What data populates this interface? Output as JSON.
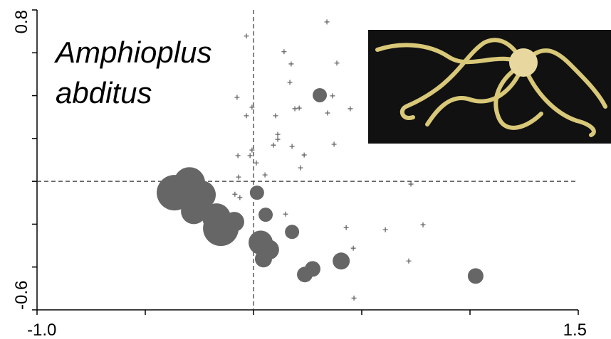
{
  "chart_data": {
    "type": "scatter",
    "annotation": [
      "Amphioplus",
      "abditus"
    ],
    "xlim": [
      -1.0,
      1.5
    ],
    "ylim": [
      -0.6,
      0.8
    ],
    "xticks": [
      {
        "value": -1.0,
        "label": "-1.0"
      },
      1.5
    ],
    "yticks": [
      -0.6,
      0.8
    ],
    "xminorticks": [
      -0.5,
      0,
      0.5,
      1.0
    ],
    "yminorticks": [
      -0.4,
      -0.2,
      0,
      0.2,
      0.4,
      0.6
    ],
    "reference_lines": {
      "x": 0,
      "y": 0
    },
    "series": [
      {
        "marker": "cross",
        "color": "#666666",
        "x": [
          0.339,
          -0.033,
          0.141,
          0.385,
          0.174,
          0.168,
          -0.076,
          0.365,
          0.191,
          0.211,
          0.342,
          0.447,
          -0.033,
          -0.007,
          0.102,
          0.112,
          0.112,
          0.092,
          0.178,
          0.372,
          -0.007,
          -0.016,
          -0.072,
          0.234,
          0.013,
          0.217,
          0.053,
          -0.069,
          0.727,
          -0.086,
          -0.063,
          0.148,
          0.428,
          0.609,
          0.783,
          0.461,
          0.717,
          0.464
        ],
        "y": [
          0.744,
          0.678,
          0.605,
          0.552,
          0.548,
          0.462,
          0.392,
          0.399,
          0.339,
          0.342,
          0.319,
          0.339,
          0.306,
          0.346,
          0.306,
          0.219,
          0.196,
          0.169,
          0.163,
          0.173,
          0.146,
          0.12,
          0.12,
          0.123,
          0.086,
          0.063,
          0.03,
          0.02,
          -0.013,
          -0.06,
          -0.076,
          -0.153,
          -0.216,
          -0.226,
          -0.203,
          -0.312,
          -0.372,
          -0.545
        ]
      },
      {
        "marker": "circle",
        "color": "#666666",
        "x": [
          0.306,
          0.016,
          0.056,
          0.178,
          -0.296,
          -0.365,
          -0.24,
          -0.276,
          -0.171,
          -0.151,
          -0.089,
          0.033,
          0.072,
          0.046,
          0.237,
          0.273,
          0.405,
          1.026
        ],
        "y": [
          0.402,
          -0.053,
          -0.156,
          -0.236,
          -0.007,
          -0.053,
          -0.063,
          -0.14,
          -0.169,
          -0.219,
          -0.189,
          -0.286,
          -0.319,
          -0.362,
          -0.435,
          -0.409,
          -0.372,
          -0.442
        ],
        "sizes": [
          10,
          10,
          10,
          10,
          22,
          25,
          20,
          18,
          20,
          25,
          14,
          17,
          14,
          12,
          11,
          11,
          12,
          11
        ]
      }
    ]
  }
}
